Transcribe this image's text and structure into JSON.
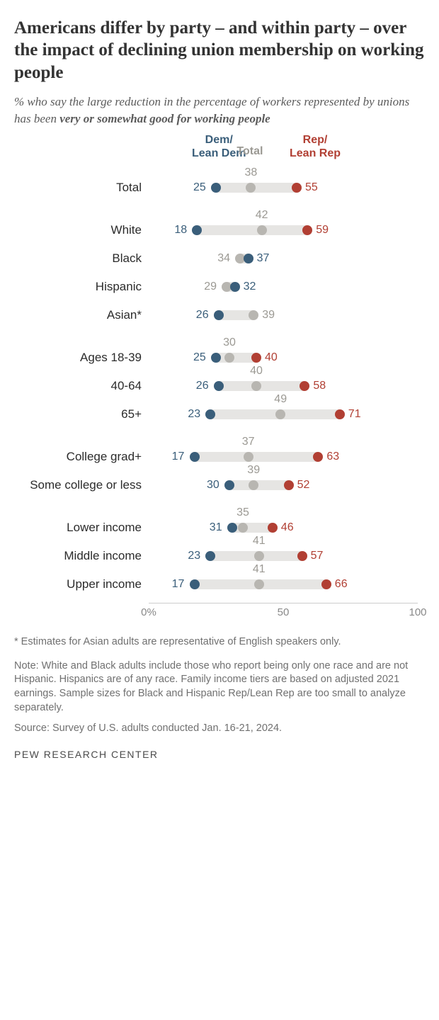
{
  "title": "Americans differ by party – and within party – over the impact of declining union membership on working people",
  "subtitle_pre": "% who say the large reduction in the percentage of workers represented by unions has been ",
  "subtitle_emph": "very or somewhat good for working people",
  "colors": {
    "dem": "#3a5e7a",
    "total": "#b8b6b1",
    "rep": "#b13f33",
    "track": "#e6e5e3",
    "label": "#2b2b2b",
    "dem_text": "#3a5e7a",
    "total_text": "#9b9993",
    "rep_text": "#b13f33"
  },
  "legend": {
    "dem": "Dem/\nLean Dem",
    "total": "Total",
    "rep": "Rep/\nLean Rep"
  },
  "scale": {
    "min": 0,
    "max": 100
  },
  "axis_ticks": [
    {
      "pos": 0,
      "label": "0%"
    },
    {
      "pos": 50,
      "label": "50"
    },
    {
      "pos": 100,
      "label": "100"
    }
  ],
  "groups": [
    {
      "rows": [
        {
          "label": "Total",
          "dem": 25,
          "total": 38,
          "rep": 55,
          "total_above": true
        }
      ]
    },
    {
      "rows": [
        {
          "label": "White",
          "dem": 18,
          "total": 42,
          "rep": 59,
          "total_above": true
        },
        {
          "label": "Black",
          "dem": 37,
          "total": 34,
          "total_left": true
        },
        {
          "label": "Hispanic",
          "dem": 32,
          "total": 29,
          "total_left": true
        },
        {
          "label": "Asian*",
          "dem": 26,
          "total": 39
        }
      ]
    },
    {
      "rows": [
        {
          "label": "Ages 18-39",
          "dem": 25,
          "total": 30,
          "rep": 40,
          "total_above": true
        },
        {
          "label": "40-64",
          "dem": 26,
          "total": 40,
          "rep": 58,
          "total_above": true
        },
        {
          "label": "65+",
          "dem": 23,
          "total": 49,
          "rep": 71,
          "total_above": true
        }
      ]
    },
    {
      "rows": [
        {
          "label": "College grad+",
          "dem": 17,
          "total": 37,
          "rep": 63,
          "total_above": true
        },
        {
          "label": "Some college or less",
          "dem": 30,
          "total": 39,
          "rep": 52,
          "total_above": true
        }
      ]
    },
    {
      "rows": [
        {
          "label": "Lower income",
          "dem": 31,
          "total": 35,
          "rep": 46,
          "total_above": true
        },
        {
          "label": "Middle income",
          "dem": 23,
          "total": 41,
          "rep": 57,
          "total_above": true
        },
        {
          "label": "Upper income",
          "dem": 17,
          "total": 41,
          "rep": 66,
          "total_above": true
        }
      ]
    }
  ],
  "footnote": "* Estimates for Asian adults are representative of English speakers only.",
  "note": "Note: White and Black adults include those who report being only one race and are not Hispanic. Hispanics are of any race. Family income tiers are based on adjusted 2021 earnings. Sample sizes for Black and Hispanic Rep/Lean Rep are too small to analyze separately.",
  "source": "Source: Survey of U.S. adults conducted Jan. 16-21, 2024.",
  "attribution": "PEW RESEARCH CENTER"
}
